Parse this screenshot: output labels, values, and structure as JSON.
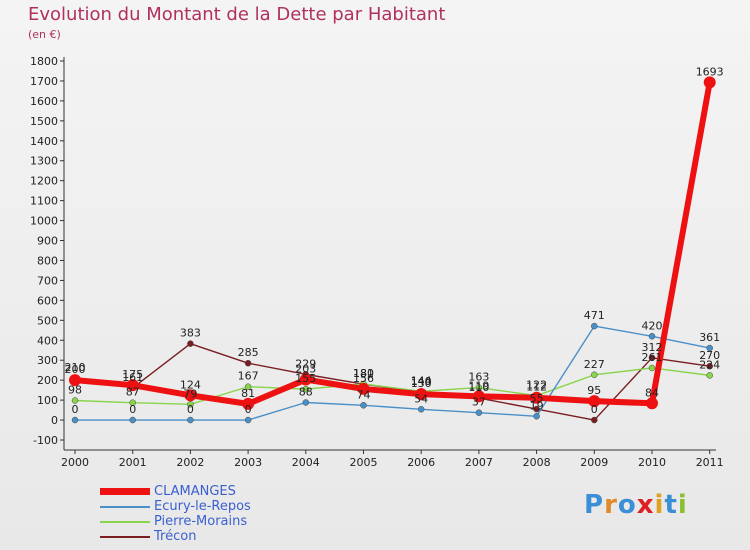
{
  "title": "Evolution du Montant de la Dette par Habitant",
  "subtitle": "(en €)",
  "logo": {
    "text": "Proxiti",
    "colors": [
      "#3a8fd6",
      "#e08a2a",
      "#3a8fd6",
      "#e02020",
      "#e0a020",
      "#3a8fd6",
      "#8ac030"
    ]
  },
  "chart_data": {
    "type": "line",
    "title": "Evolution du Montant de la Dette par Habitant",
    "subtitle": "(en €)",
    "x": [
      "2000",
      "2001",
      "2002",
      "2003",
      "2004",
      "2005",
      "2006",
      "2007",
      "2008",
      "2009",
      "2010",
      "2011"
    ],
    "y_ticks": [
      -100,
      0,
      100,
      200,
      300,
      400,
      500,
      600,
      700,
      800,
      900,
      1000,
      1100,
      1200,
      1300,
      1400,
      1500,
      1600,
      1700,
      1800
    ],
    "ylim": [
      -100,
      1800
    ],
    "grid": false,
    "legend_position": "bottom-left",
    "series": [
      {
        "name": "Trécon",
        "color": "#7a1e22",
        "values": [
          210,
          161,
          383,
          285,
          229,
          180,
          140,
          110,
          55,
          0,
          312,
          270
        ]
      },
      {
        "name": "Pierre-Morains",
        "color": "#88d44a",
        "values": [
          98,
          87,
          79,
          167,
          155,
          181,
          144,
          163,
          122,
          227,
          261,
          224
        ]
      },
      {
        "name": "Ecury-le-Repos",
        "color": "#4a90c8",
        "values": [
          0,
          0,
          0,
          0,
          88,
          74,
          54,
          37,
          19,
          471,
          420,
          361
        ]
      },
      {
        "name": "CLAMANGES",
        "color": "#ee1111",
        "values": [
          200,
          175,
          124,
          81,
          203,
          156,
          130,
          119,
          112,
          95,
          84,
          1693
        ]
      }
    ],
    "data_labels": [
      {
        "x": "2000",
        "text": "210"
      },
      {
        "x": "2000",
        "text": "200"
      },
      {
        "x": "2000",
        "text": "98"
      },
      {
        "x": "2000",
        "text": "0"
      },
      {
        "x": "2001",
        "text": "175"
      },
      {
        "x": "2001",
        "text": "161"
      },
      {
        "x": "2001",
        "text": "87"
      },
      {
        "x": "2001",
        "text": "0"
      },
      {
        "x": "2002",
        "text": "383"
      },
      {
        "x": "2002",
        "text": "124"
      },
      {
        "x": "2002",
        "text": "79"
      },
      {
        "x": "2002",
        "text": "0"
      },
      {
        "x": "2003",
        "text": "285"
      },
      {
        "x": "2003",
        "text": "167"
      },
      {
        "x": "2003",
        "text": "81"
      },
      {
        "x": "2003",
        "text": "0"
      },
      {
        "x": "2004",
        "text": "229"
      },
      {
        "x": "2004",
        "text": "203"
      },
      {
        "x": "2004",
        "text": "155"
      },
      {
        "x": "2004",
        "text": "88"
      },
      {
        "x": "2005",
        "text": "181"
      },
      {
        "x": "2005",
        "text": "180"
      },
      {
        "x": "2005",
        "text": "156"
      },
      {
        "x": "2005",
        "text": "74"
      },
      {
        "x": "2006",
        "text": "144"
      },
      {
        "x": "2006",
        "text": "140"
      },
      {
        "x": "2006",
        "text": "130"
      },
      {
        "x": "2006",
        "text": "54"
      },
      {
        "x": "2007",
        "text": "163"
      },
      {
        "x": "2007",
        "text": "119"
      },
      {
        "x": "2007",
        "text": "110"
      },
      {
        "x": "2007",
        "text": "37"
      },
      {
        "x": "2008",
        "text": "122"
      },
      {
        "x": "2008",
        "text": "112"
      },
      {
        "x": "2008",
        "text": "55"
      },
      {
        "x": "2008",
        "text": "19"
      },
      {
        "x": "2009",
        "text": "471"
      },
      {
        "x": "2009",
        "text": "227"
      },
      {
        "x": "2009",
        "text": "95"
      },
      {
        "x": "2009",
        "text": "0"
      },
      {
        "x": "2010",
        "text": "420"
      },
      {
        "x": "2010",
        "text": "312"
      },
      {
        "x": "2010",
        "text": "261"
      },
      {
        "x": "2010",
        "text": "84"
      },
      {
        "x": "2011",
        "text": "1693"
      },
      {
        "x": "2011",
        "text": "361"
      },
      {
        "x": "2011",
        "text": "270"
      },
      {
        "x": "2011",
        "text": "224"
      }
    ]
  },
  "legend": [
    {
      "label": "CLAMANGES",
      "color": "#ee1111",
      "emphasis": "bold"
    },
    {
      "label": "Ecury-le-Repos",
      "color": "#4a90c8",
      "emphasis": "normal"
    },
    {
      "label": "Pierre-Morains",
      "color": "#88d44a",
      "emphasis": "normal"
    },
    {
      "label": "Trécon",
      "color": "#7a1e22",
      "emphasis": "normal"
    }
  ]
}
